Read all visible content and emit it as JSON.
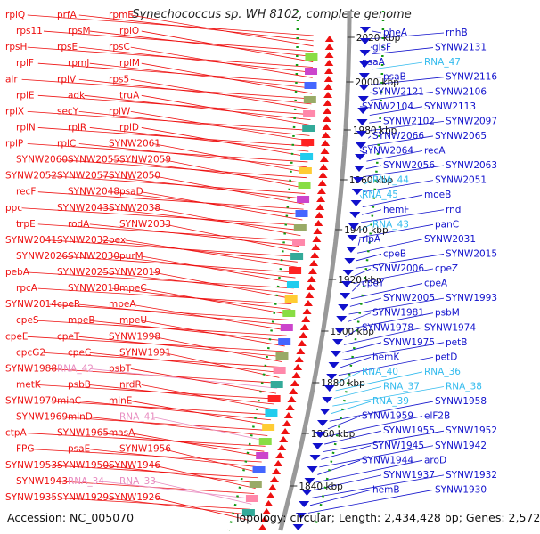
{
  "title": "Synechococcus sp. WH 8102, complete genome",
  "accession": "Accession: NC_005070",
  "topology": "Topology: circular; Length: 2,434,428 bp; Genes: 2,572",
  "colors": {
    "forward": "#ee1111",
    "reverse": "#1111cc",
    "rna_forward": "#e88cc0",
    "rna_reverse": "#33bbee",
    "backbone": "#999999",
    "tick": "#119911"
  },
  "kbp_ticks": [
    "2020 kbp",
    "2000 kbp",
    "1980 kbp",
    "1960 kbp",
    "1940 kbp",
    "1920 kbp",
    "1900 kbp",
    "1880 kbp",
    "1860 kbp",
    "1840 kbp"
  ],
  "left_labels": [
    "rplQ",
    "prfA",
    "rpmE",
    "rps11",
    "rpsM",
    "rplO",
    "rpsH",
    "rpsE",
    "rpsC",
    "rplF",
    "rpmJ",
    "rplM",
    "alr",
    "rplV",
    "rps5",
    "rplE",
    "adk",
    "truA",
    "rplX",
    "secY",
    "rplW",
    "rplN",
    "rplR",
    "rplD",
    "rplP",
    "rplC",
    "SYNW2061",
    "SYNW2060",
    "SYNW2055",
    "SYNW2059",
    "SYNW2052",
    "SYNW2057",
    "SYNW2050",
    "recF",
    "SYNW2048",
    "psaD",
    "ppc",
    "SYNW2043",
    "SYNW2038",
    "trpE",
    "rodA",
    "SYNW2033",
    "SYNW2041",
    "SYNW2032",
    "pex",
    "SYNW2026",
    "SYNW2030",
    "purM",
    "pebA",
    "SYNW2025",
    "SYNW2019",
    "rpcA",
    "SYNW2018",
    "mpeC",
    "SYNW2014",
    "cpeR",
    "mpeA",
    "cpeS",
    "mpeB",
    "mpeU",
    "cpeE",
    "cpeT",
    "SYNW1998",
    "cpcG2",
    "cpeC",
    "SYNW1991",
    "SYNW1988",
    "RNA_42",
    "psbT",
    "metK",
    "psbB",
    "nrdR",
    "SYNW1979",
    "minC",
    "minE",
    "SYNW1969",
    "minD",
    "RNA_41",
    "ctpA",
    "SYNW1965",
    "masA",
    "FPG",
    "psaE",
    "SYNW1956",
    "SYNW1953",
    "SYNW1950",
    "SYNW1946",
    "SYNW1943",
    "RNA_34",
    "RNA_33",
    "SYNW1935",
    "SYNW1929",
    "SYNW1926"
  ],
  "right_labels": [
    "pheA",
    "rnhB",
    "glsF",
    "SYNW2131",
    "psaA",
    "RNA_47",
    "psaB",
    "SYNW2116",
    "SYNW2121",
    "SYNW2106",
    "SYNW2104",
    "SYNW2113",
    "SYNW2102",
    "SYNW2097",
    "SYNW2066",
    "SYNW2065",
    "SYNW2064",
    "recA",
    "SYNW2056",
    "SYNW2063",
    "RNA_44",
    "SYNW2051",
    "RNA_45",
    "moeB",
    "hemF",
    "rnd",
    "RNA_43",
    "panC",
    "rlpA",
    "SYNW2031",
    "cpeB",
    "SYNW2015",
    "SYNW2006",
    "cpeZ",
    "cpeY",
    "cpeA",
    "SYNW2005",
    "SYNW1993",
    "SYNW1981",
    "psbM",
    "SYNW1978",
    "SYNW1974",
    "SYNW1975",
    "petB",
    "hemK",
    "petD",
    "RNA_40",
    "RNA_36",
    "RNA_37",
    "RNA_38",
    "RNA_39",
    "SYNW1958",
    "SYNW1959",
    "elF2B",
    "SYNW1955",
    "SYNW1952",
    "SYNW1945",
    "SYNW1942",
    "SYNW1944",
    "aroD",
    "SYNW1937",
    "SYNW1932",
    "hemB",
    "SYNW1930"
  ]
}
